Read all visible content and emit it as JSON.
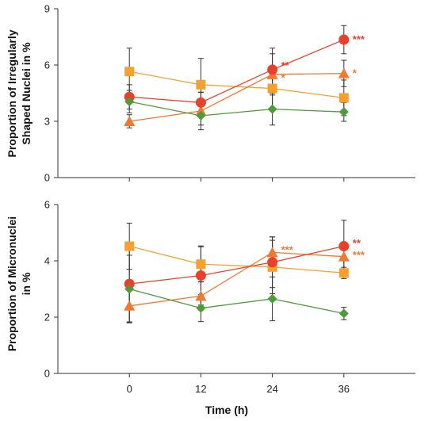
{
  "chart_data": [
    {
      "type": "line",
      "ylabel_lines": [
        "Proportion of Irregularly",
        "Shaped Nuclei in %"
      ],
      "xlabel": "",
      "x": [
        0,
        12,
        24,
        36
      ],
      "x_ticks": [
        "0",
        "12",
        "24",
        "36"
      ],
      "xlim": [
        -12,
        48
      ],
      "ylim": [
        0,
        9
      ],
      "y_ticks": [
        "0",
        "3",
        "6",
        "9"
      ],
      "show_x_tick_labels": false,
      "series": [
        {
          "marker": "square",
          "color": "#F5A030",
          "values": [
            5.65,
            4.95,
            4.75,
            4.25
          ],
          "err": [
            1.25,
            1.4,
            1.2,
            0.95
          ]
        },
        {
          "marker": "triangle",
          "color": "#F07830",
          "values": [
            3.0,
            3.55,
            5.5,
            5.55
          ],
          "err": [
            0.35,
            1.0,
            1.1,
            0.7
          ]
        },
        {
          "marker": "circle",
          "color": "#E8402A",
          "values": [
            4.3,
            4.0,
            5.75,
            7.35
          ],
          "err": [
            0.65,
            0.55,
            1.15,
            0.75
          ]
        },
        {
          "marker": "diamond",
          "color": "#4E9A3C",
          "values": [
            4.05,
            3.3,
            3.65,
            3.5
          ],
          "err": [
            0.6,
            0.5,
            0.85,
            0.5
          ]
        }
      ],
      "annotations": [
        {
          "text": "***",
          "x": 36,
          "y": 7.35,
          "color": "#E8402A"
        },
        {
          "text": "**",
          "x": 24,
          "y": 5.95,
          "color": "#E8402A"
        },
        {
          "text": "*",
          "x": 24,
          "y": 5.3,
          "color": "#F07830"
        },
        {
          "text": "*",
          "x": 36,
          "y": 5.55,
          "color": "#F07830"
        }
      ]
    },
    {
      "type": "line",
      "ylabel_lines": [
        "Proportion of Micronuclei",
        "in %"
      ],
      "xlabel": "Time (h)",
      "x": [
        0,
        12,
        24,
        36
      ],
      "x_ticks": [
        "0",
        "12",
        "24",
        "36"
      ],
      "xlim": [
        -12,
        48
      ],
      "ylim": [
        0,
        6
      ],
      "y_ticks": [
        "0",
        "2",
        "4",
        "6"
      ],
      "show_x_tick_labels": true,
      "series": [
        {
          "marker": "square",
          "color": "#F5A030",
          "values": [
            4.52,
            3.88,
            3.78,
            3.57
          ],
          "err": [
            0.82,
            0.62,
            0.95,
            0.2
          ]
        },
        {
          "marker": "triangle",
          "color": "#F07830",
          "values": [
            2.4,
            2.75,
            4.3,
            4.15
          ],
          "err": [
            0.6,
            0.5,
            0.55,
            0.5
          ]
        },
        {
          "marker": "circle",
          "color": "#E8402A",
          "values": [
            3.18,
            3.48,
            3.95,
            4.52
          ],
          "err": [
            1.35,
            1.05,
            0.9,
            0.92
          ]
        },
        {
          "marker": "diamond",
          "color": "#4E9A3C",
          "values": [
            3.0,
            2.32,
            2.65,
            2.13
          ],
          "err": [
            1.2,
            0.48,
            0.78,
            0.22
          ]
        }
      ],
      "annotations": [
        {
          "text": "***",
          "x": 24,
          "y": 4.38,
          "color": "#F07830"
        },
        {
          "text": "**",
          "x": 36,
          "y": 4.62,
          "color": "#E8402A"
        },
        {
          "text": "***",
          "x": 36,
          "y": 4.2,
          "color": "#F07830"
        }
      ]
    }
  ]
}
